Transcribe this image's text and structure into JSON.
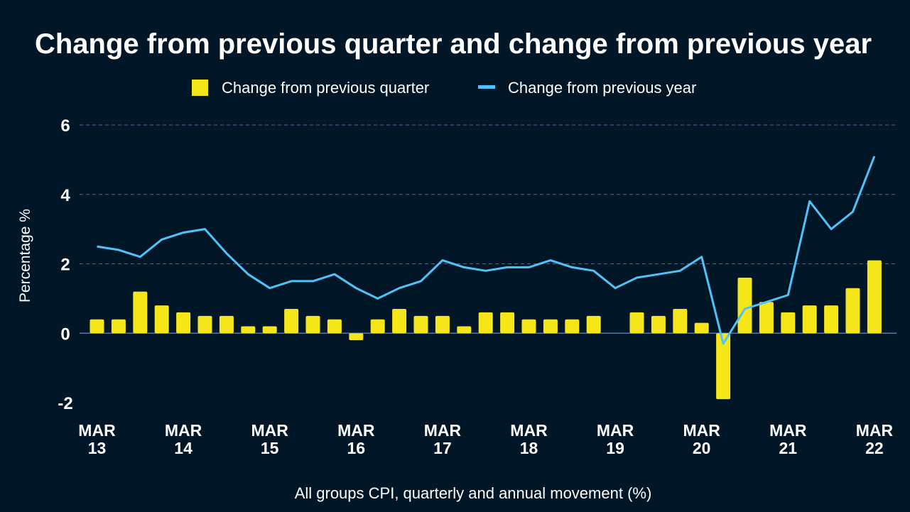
{
  "chart_data": {
    "type": "bar+line",
    "title": "Change from previous quarter and change from previous year",
    "subtitle": "All groups CPI, quarterly and annual movement (%)",
    "xlabel": "",
    "ylabel": "Percentage %",
    "ylim": [
      -2,
      6
    ],
    "yticks": [
      -2,
      0,
      2,
      4,
      6
    ],
    "grid": true,
    "legend_position": "top-center",
    "colors": {
      "background": "#011627",
      "bars": "#f5e61a",
      "line": "#4fc3f7",
      "grid": "#3a6ea5",
      "text": "#ffffff"
    },
    "x_tick_labels": [
      {
        "month": "MAR",
        "year": "13"
      },
      {
        "month": "MAR",
        "year": "14"
      },
      {
        "month": "MAR",
        "year": "15"
      },
      {
        "month": "MAR",
        "year": "16"
      },
      {
        "month": "MAR",
        "year": "17"
      },
      {
        "month": "MAR",
        "year": "18"
      },
      {
        "month": "MAR",
        "year": "19"
      },
      {
        "month": "MAR",
        "year": "20"
      },
      {
        "month": "MAR",
        "year": "21"
      },
      {
        "month": "MAR",
        "year": "22"
      }
    ],
    "periods_per_tick": 4,
    "series": [
      {
        "name": "Change from previous quarter",
        "kind": "bar",
        "values": [
          0.4,
          0.4,
          1.2,
          0.8,
          0.6,
          0.5,
          0.5,
          0.2,
          0.2,
          0.7,
          0.5,
          0.4,
          -0.2,
          0.4,
          0.7,
          0.5,
          0.5,
          0.2,
          0.6,
          0.6,
          0.4,
          0.4,
          0.4,
          0.5,
          0.0,
          0.6,
          0.5,
          0.7,
          0.3,
          -1.9,
          1.6,
          0.9,
          0.6,
          0.8,
          0.8,
          1.3,
          2.1
        ]
      },
      {
        "name": "Change from previous year",
        "kind": "line",
        "values": [
          2.5,
          2.4,
          2.2,
          2.7,
          2.9,
          3.0,
          2.3,
          1.7,
          1.3,
          1.5,
          1.5,
          1.7,
          1.3,
          1.0,
          1.3,
          1.5,
          2.1,
          1.9,
          1.8,
          1.9,
          1.9,
          2.1,
          1.9,
          1.8,
          1.3,
          1.6,
          1.7,
          1.8,
          2.2,
          -0.3,
          0.7,
          0.9,
          1.1,
          3.8,
          3.0,
          3.5,
          5.1
        ]
      }
    ]
  }
}
